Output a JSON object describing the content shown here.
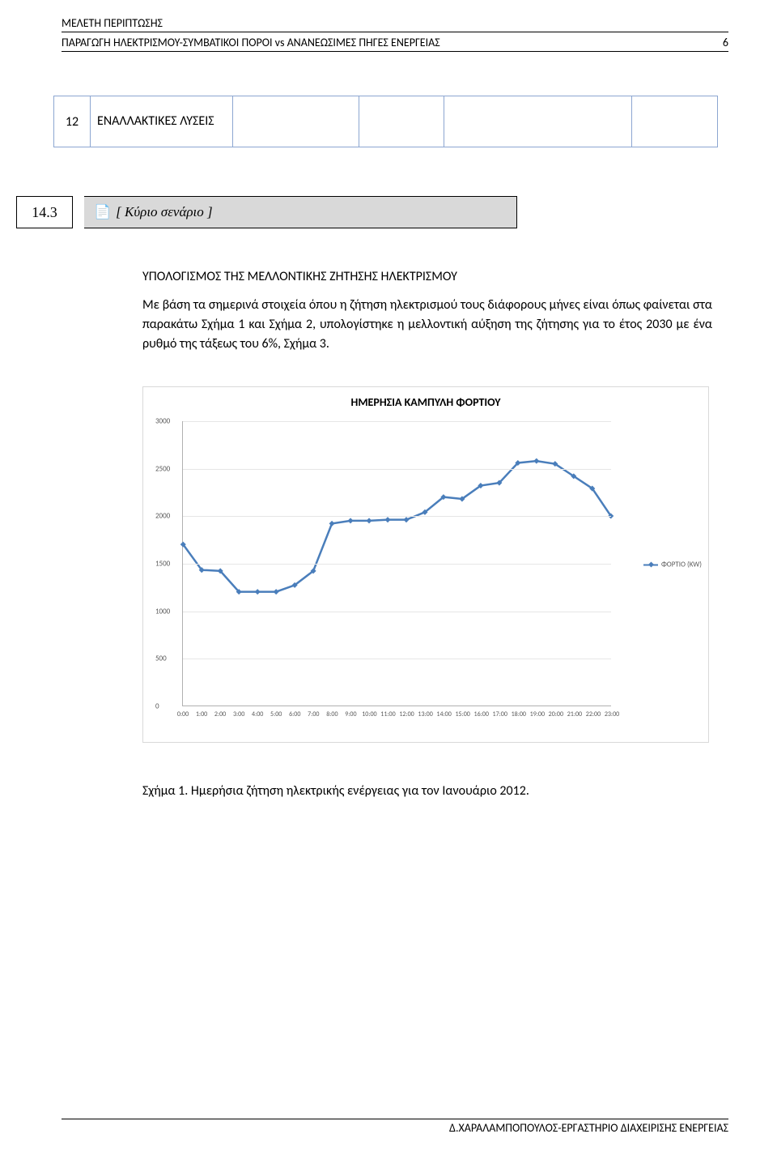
{
  "header": {
    "sub": "ΜΕΛΕΤΗ ΠΕΡΙΠΤΩΣΗΣ",
    "main": "ΠΑΡΑΓΩΓΗ ΗΛΕΚΤΡΙΣΜΟΥ-ΣΥΜΒΑΤΙΚΟΙ ΠΟΡΟΙ vs ΑΝΑΝΕΩΣΙΜΕΣ ΠΗΓΕΣ ΕΝΕΡΓΕΙΑΣ",
    "page_number": "6"
  },
  "table_row": {
    "num": "12",
    "text": "ΕΝΑΛΛΑΚΤΙΚΕΣ ΛΥΣΕΙΣ"
  },
  "section": {
    "num": "14.3",
    "glyph": "📄",
    "title": "[ Κύριο σενάριο ]"
  },
  "paragraph": {
    "title": "ΥΠΟΛΟΓΙΣΜΟΣ ΤΗΣ ΜΕΛΛΟΝΤΙΚΗΣ ΖΗΤΗΣΗΣ ΗΛΕΚΤΡΙΣΜΟΥ",
    "body": "Με βάση τα σημερινά στοιχεία όπου η ζήτηση ηλεκτρισμού τους διάφορους μήνες είναι όπως φαίνεται στα παρακάτω Σχήμα 1 και Σχήμα 2, υπολογίστηκε η μελλοντική αύξηση της ζήτησης για το έτος 2030 με ένα ρυθμό της τάξεως του 6%, Σχήμα 3."
  },
  "chart": {
    "title": "ΗΜΕΡΗΣΙΑ ΚΑΜΠΥΛΗ ΦΟΡΤΙΟΥ",
    "legend_label": "ΦΟΡΤΙΟ (KW)",
    "series_color": "#4a7ebb",
    "ymin": 0,
    "ymax": 3000,
    "ytick_step": 500,
    "yticks": [
      "0",
      "500",
      "1000",
      "1500",
      "2000",
      "2500",
      "3000"
    ],
    "xlabels": [
      "0:00",
      "1:00",
      "2:00",
      "3:00",
      "4:00",
      "5:00",
      "6:00",
      "7:00",
      "8:00",
      "9:00",
      "10:00",
      "11:00",
      "12:00",
      "13:00",
      "14:00",
      "15:00",
      "16:00",
      "17:00",
      "18:00",
      "19:00",
      "20:00",
      "21:00",
      "22:00",
      "23:00"
    ],
    "values": [
      1700,
      1430,
      1420,
      1200,
      1200,
      1200,
      1270,
      1420,
      1920,
      1950,
      1950,
      1960,
      1960,
      2040,
      2200,
      2180,
      2320,
      2350,
      2560,
      2580,
      2550,
      2420,
      2290,
      2000
    ],
    "grid_color": "#e6e6e6",
    "axis_color": "#b0b0b0",
    "marker_size": 5,
    "line_width": 2.5
  },
  "caption": "Σχήμα 1. Ημερήσια ζήτηση ηλεκτρικής ενέργειας για τον Ιανουάριο 2012.",
  "footer": "Δ.ΧΑΡΑΛΑΜΠΟΠΟΥΛΟΣ-ΕΡΓΑΣΤΗΡΙΟ ΔΙΑΧΕΙΡΙΣΗΣ ΕΝΕΡΓΕΙΑΣ"
}
